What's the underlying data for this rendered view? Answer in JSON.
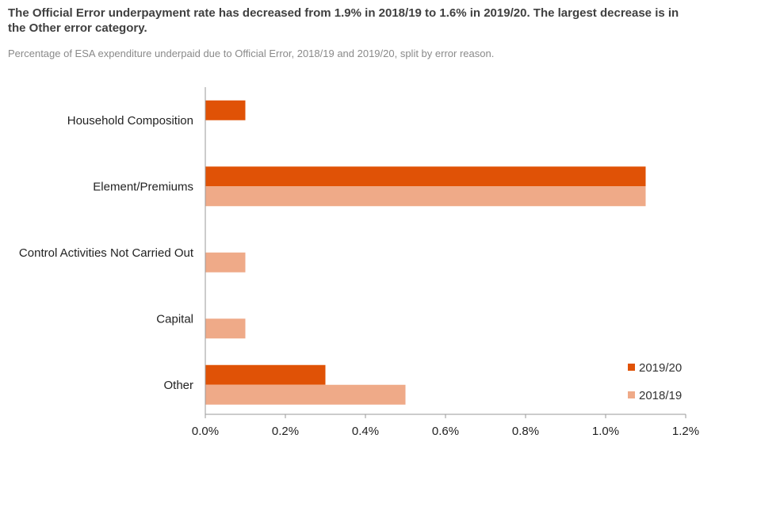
{
  "header": {
    "title_line1": "The Official  Error underpayment rate has decreased from 1.9% in 2018/19 to 1.6% in 2019/20. The largest decrease is in",
    "title_line2": "the Other error category.",
    "subtitle": "Percentage of ESA expenditure underpaid due to Official Error, 2018/19 and 2019/20, split by error reason."
  },
  "colors": {
    "series_2019_20": "#e05206",
    "series_2018_19": "#efaa88",
    "axis": "#9a9a9a"
  },
  "chart_data": {
    "type": "bar",
    "orientation": "horizontal",
    "title": "Percentage of ESA expenditure underpaid due to Official Error, 2018/19 and 2019/20, split by error reason.",
    "categories": [
      "Household Composition",
      "Element/Premiums",
      "Control Activities Not Carried Out",
      "Capital",
      "Other"
    ],
    "series": [
      {
        "name": "2019/20",
        "values": [
          0.1,
          1.1,
          0,
          0,
          0.3
        ]
      },
      {
        "name": "2018/19",
        "values": [
          0,
          1.1,
          0.1,
          0.1,
          0.5
        ]
      }
    ],
    "xlim": [
      0,
      1.2
    ],
    "ticks": [
      "0.0%",
      "0.2%",
      "0.4%",
      "0.6%",
      "0.8%",
      "1.0%",
      "1.2%"
    ],
    "xlabel": "",
    "ylabel": "",
    "legend": {
      "position": "bottom-right",
      "entries": [
        "2019/20",
        "2018/19"
      ]
    },
    "grid": false
  }
}
